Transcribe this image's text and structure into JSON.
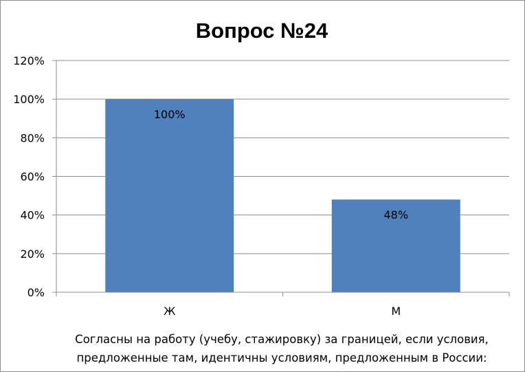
{
  "chart_data": {
    "type": "bar",
    "title": "Вопрос №24",
    "categories": [
      "Ж",
      "М"
    ],
    "values": [
      100,
      48
    ],
    "data_labels": [
      "100%",
      "48%"
    ],
    "ylim": [
      0,
      120
    ],
    "yticks": [
      0,
      20,
      40,
      60,
      80,
      100,
      120
    ],
    "ytick_labels": [
      "0%",
      "20%",
      "40%",
      "60%",
      "80%",
      "100%",
      "120%"
    ],
    "xlabel_lines": [
      "Согласны  на работу (учебу, стажировку) за границей, если условия,",
      "предложенные там,  идентичны условиям, предложенным в России:"
    ],
    "ylabel": "",
    "grid": true,
    "legend": "none",
    "bar_color": "#4f81bd",
    "grid_color": "#8c8c8c"
  }
}
